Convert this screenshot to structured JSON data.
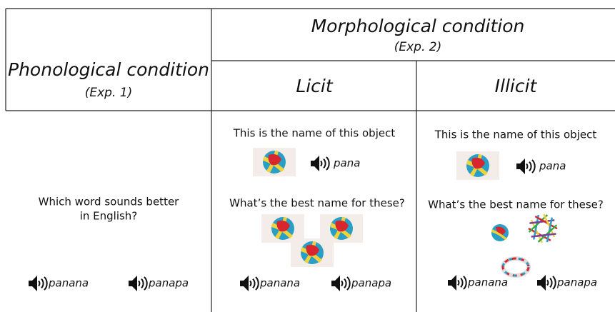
{
  "header": {
    "phonological": {
      "title": "Phonological condition",
      "subtitle": "(Exp. 1)"
    },
    "morphological": {
      "title": "Morphological condition",
      "subtitle": "(Exp. 2)"
    },
    "licit": "Licit",
    "illicit": "Illicit"
  },
  "cells": {
    "phonological": {
      "question": [
        "Which word sounds better",
        "in English?"
      ],
      "options": [
        "panana",
        "panapa"
      ]
    },
    "licit": {
      "intro": "This is the name of this object",
      "word": "pana",
      "question": "What’s the best name for these?",
      "options": [
        "panana",
        "panapa"
      ]
    },
    "illicit": {
      "intro": "This is the name of this object",
      "word": "pana",
      "question": "What’s the best name for these?",
      "options": [
        "panana",
        "panapa"
      ]
    }
  }
}
